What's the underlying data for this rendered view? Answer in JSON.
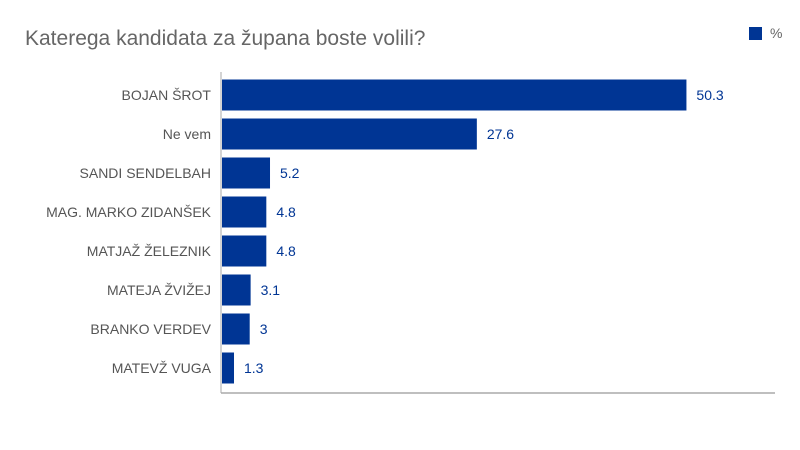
{
  "chart_data": {
    "type": "bar",
    "orientation": "horizontal",
    "title": "Katerega kandidata za župana boste volili?",
    "categories": [
      "BOJAN ŠROT",
      "Ne vem",
      "SANDI SENDELBAH",
      "MAG. MARKO ZIDANŠEK",
      "MATJAŽ ŽELEZNIK",
      "MATEJA ŽVIŽEJ",
      "BRANKO VERDEV",
      "MATEVŽ VUGA"
    ],
    "value_labels": [
      "50.3",
      "27.6",
      "5.2",
      "4.8",
      "4.8",
      "3.1",
      "3",
      "1.3"
    ],
    "series": [
      {
        "name": "%",
        "values": [
          50.3,
          27.6,
          5.2,
          4.8,
          4.8,
          3.1,
          3,
          1.3
        ],
        "color": "#003594"
      }
    ],
    "xlim": [
      0,
      60
    ],
    "grid": false,
    "legend_position": "top-right",
    "label_color": "#555555",
    "value_label_color": "#003594"
  }
}
